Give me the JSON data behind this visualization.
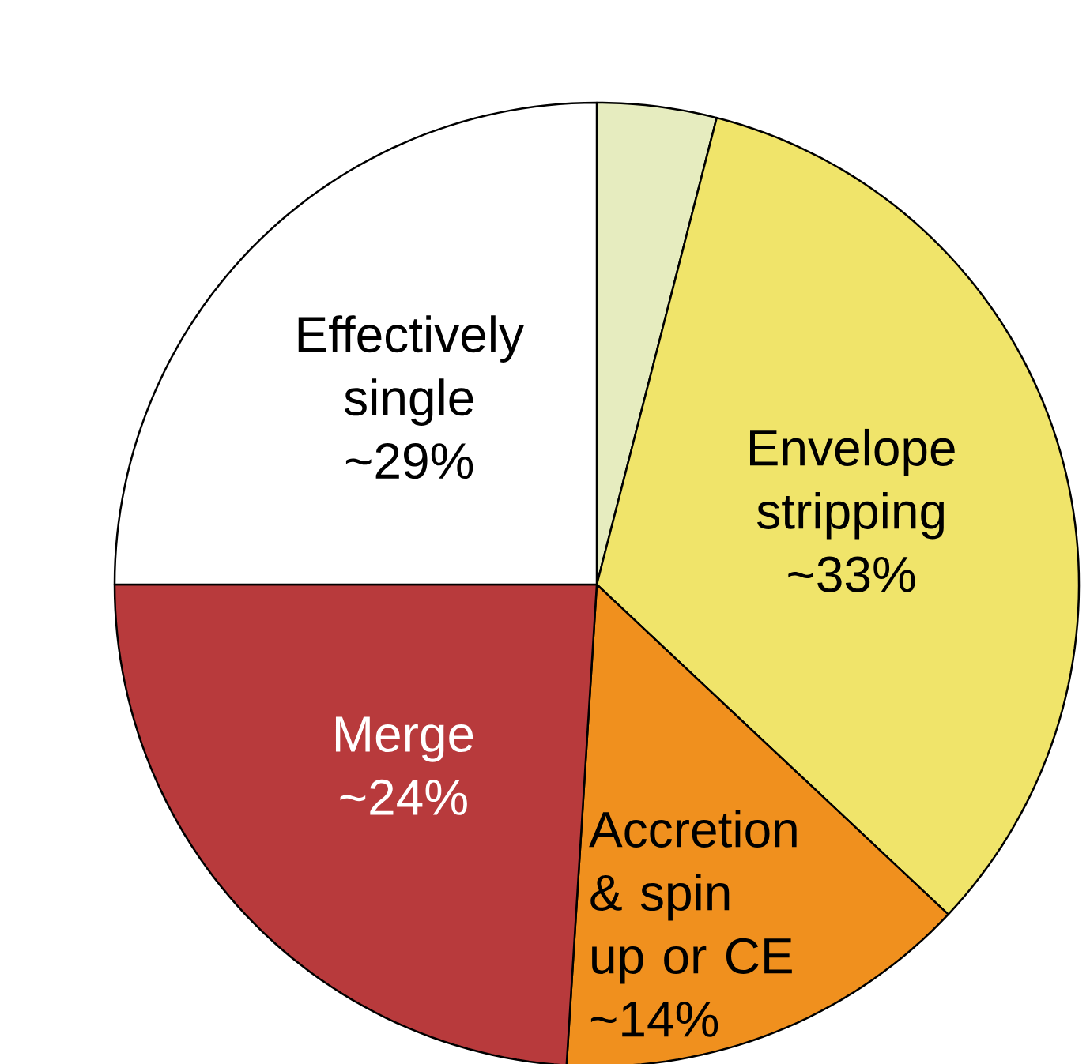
{
  "chart_data": {
    "type": "pie",
    "categories": [
      null,
      "Envelope stripping",
      "Accretion & spin up or CE",
      "Merge",
      null
    ],
    "values": [
      4,
      33,
      14,
      24,
      25
    ],
    "value_labels": [
      null,
      "~33%",
      "~14%",
      "~24%",
      null
    ],
    "colors": [
      "#e6ecbf",
      "#f0e46a",
      "#f0901e",
      "#b83a3c",
      "#ffffff"
    ],
    "annotations": [
      "Effectively single ~29%"
    ]
  }
}
